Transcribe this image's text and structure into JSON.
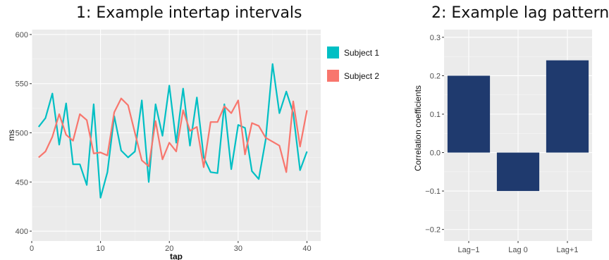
{
  "chart_data": [
    {
      "type": "line",
      "title": "1: Example intertap intervals",
      "xlabel": "tap",
      "ylabel": "ms",
      "xlim": [
        0,
        42
      ],
      "ylim": [
        390,
        605
      ],
      "xticks": [
        0,
        10,
        20,
        30,
        40
      ],
      "yticks": [
        400,
        450,
        500,
        550,
        600
      ],
      "grid": true,
      "legend": "right",
      "x": [
        1,
        2,
        3,
        4,
        5,
        6,
        7,
        8,
        9,
        10,
        11,
        12,
        13,
        14,
        15,
        16,
        17,
        18,
        19,
        20,
        21,
        22,
        23,
        24,
        25,
        26,
        27,
        28,
        29,
        30,
        31,
        32,
        33,
        34,
        35,
        36,
        37,
        38,
        39,
        40
      ],
      "series": [
        {
          "name": "Subject 1",
          "color": "#00BFC4",
          "values": [
            506,
            515,
            540,
            488,
            530,
            468,
            468,
            447,
            529,
            434,
            460,
            517,
            482,
            475,
            481,
            533,
            450,
            529,
            497,
            548,
            490,
            545,
            487,
            536,
            475,
            460,
            459,
            529,
            463,
            508,
            505,
            461,
            453,
            493,
            570,
            520,
            542,
            520,
            462,
            481
          ]
        },
        {
          "name": "Subject 2",
          "color": "#F8766D",
          "values": [
            475,
            481,
            496,
            519,
            498,
            492,
            519,
            513,
            479,
            480,
            477,
            521,
            535,
            528,
            500,
            472,
            466,
            512,
            473,
            490,
            481,
            523,
            502,
            506,
            465,
            511,
            511,
            527,
            520,
            533,
            478,
            510,
            507,
            495,
            491,
            487,
            460,
            532,
            486,
            523
          ]
        }
      ]
    },
    {
      "type": "bar",
      "title": "2: Example lag pattern",
      "xlabel": "",
      "ylabel": "Correlation coefficients",
      "categories": [
        "Lag−1",
        "Lag 0",
        "Lag+1"
      ],
      "values": [
        0.2,
        -0.1,
        0.24
      ],
      "ylim": [
        -0.23,
        0.32
      ],
      "yticks": [
        -0.2,
        -0.1,
        0.0,
        0.1,
        0.2,
        0.3
      ],
      "ytick_labels": [
        "−0.2",
        "−0.1",
        "0.0",
        "0.1",
        "0.2",
        "0.3"
      ],
      "color": "#1F3A6E",
      "grid": true
    }
  ]
}
